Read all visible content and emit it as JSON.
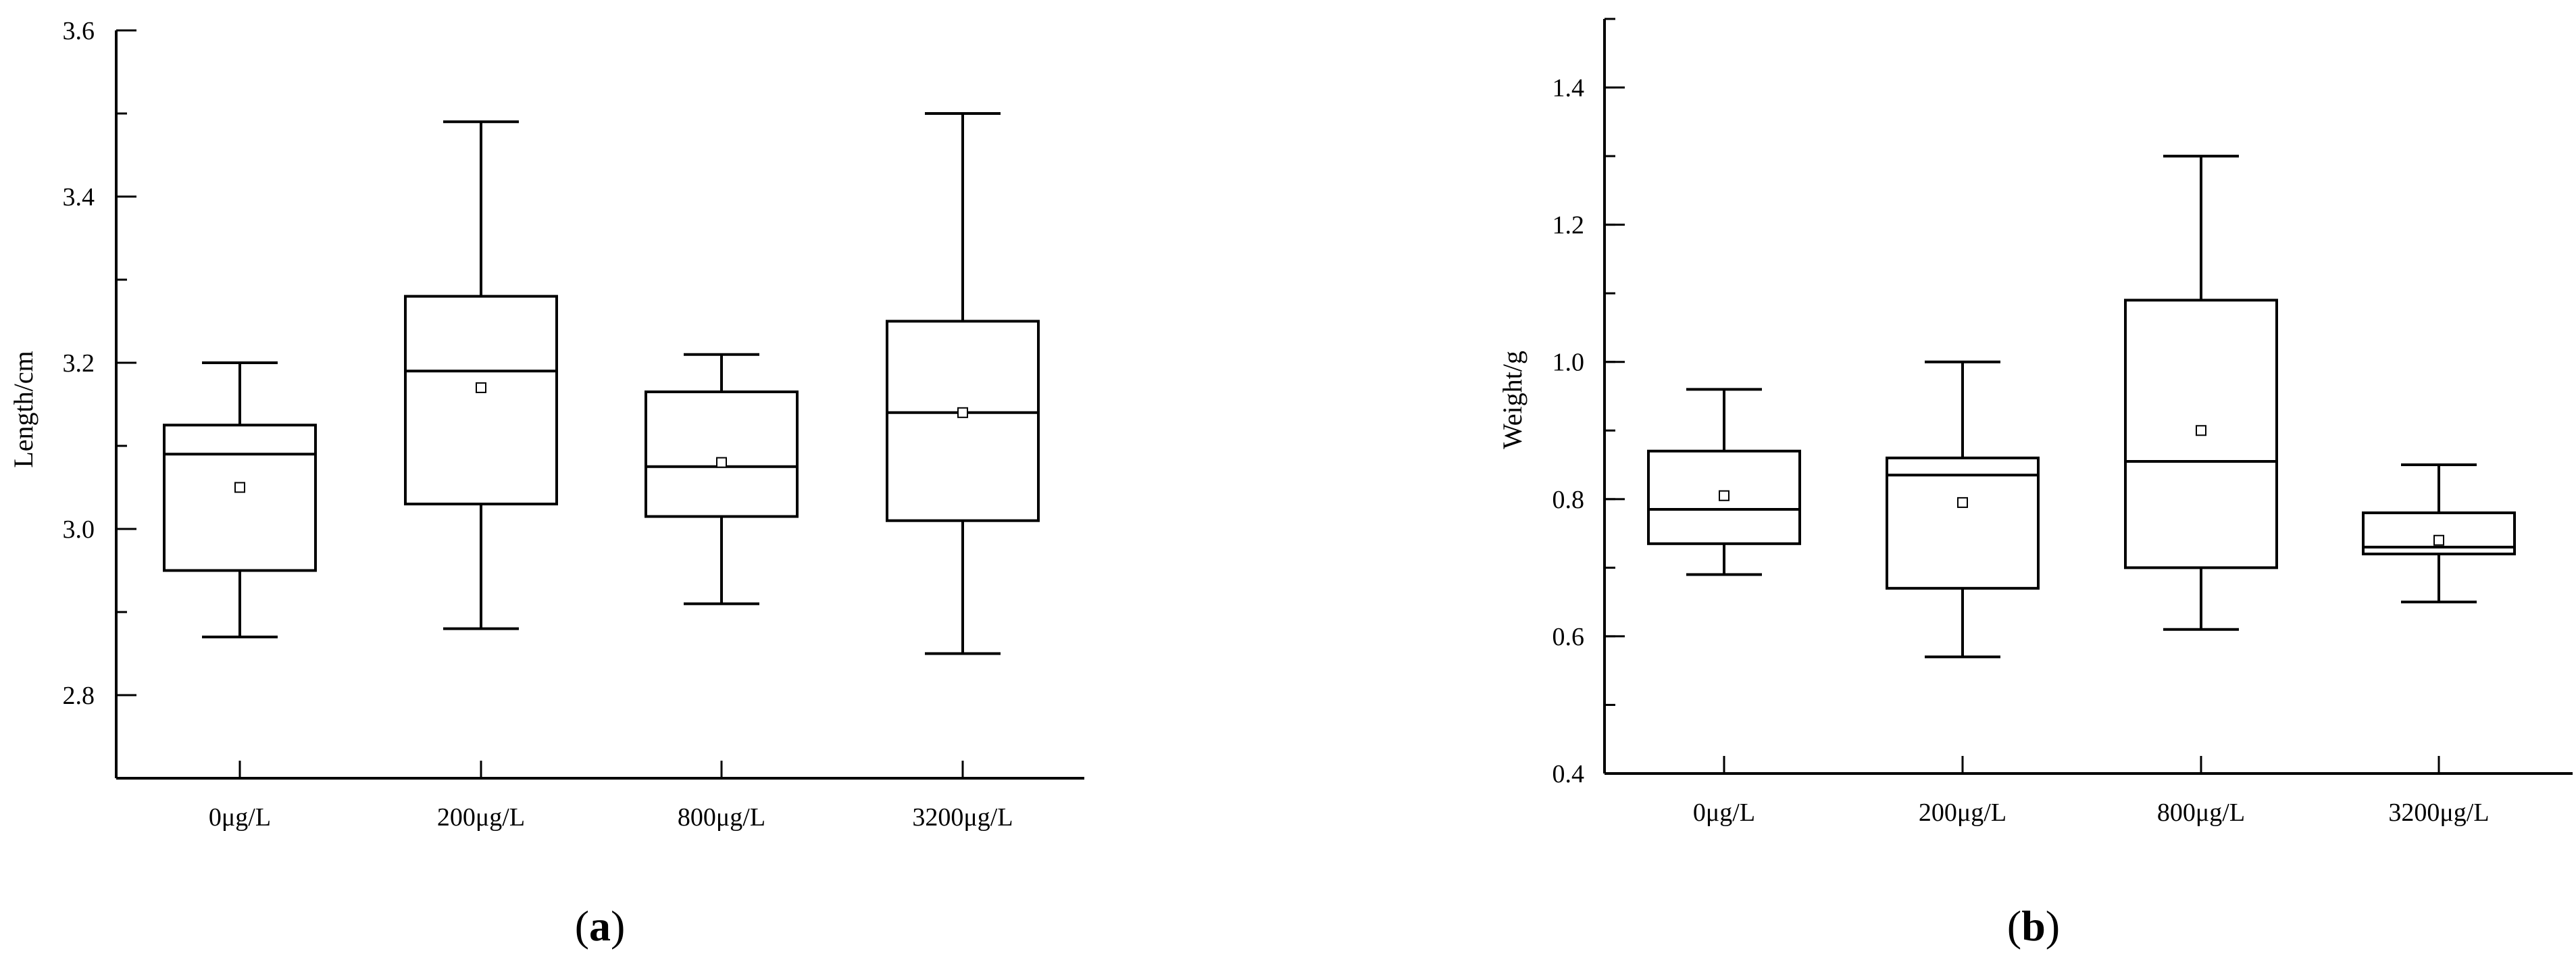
{
  "chart_data": [
    {
      "type": "box",
      "panel_label": "a",
      "ylabel": "Length/cm",
      "xlabel": "",
      "ylim": [
        2.7,
        3.6
      ],
      "yticks": [
        "2.8",
        "3.0",
        "3.2",
        "3.4",
        "3.6"
      ],
      "categories": [
        "0μg/L",
        "200μg/L",
        "800μg/L",
        "3200μg/L"
      ],
      "boxes": [
        {
          "whisker_low": 2.87,
          "q1": 2.95,
          "median": 3.09,
          "q3": 3.125,
          "whisker_high": 3.2,
          "mean": 3.05
        },
        {
          "whisker_low": 2.88,
          "q1": 3.03,
          "median": 3.19,
          "q3": 3.28,
          "whisker_high": 3.49,
          "mean": 3.17
        },
        {
          "whisker_low": 2.91,
          "q1": 3.015,
          "median": 3.075,
          "q3": 3.165,
          "whisker_high": 3.21,
          "mean": 3.08
        },
        {
          "whisker_low": 2.85,
          "q1": 3.01,
          "median": 3.14,
          "q3": 3.25,
          "whisker_high": 3.5,
          "mean": 3.14
        }
      ]
    },
    {
      "type": "box",
      "panel_label": "b",
      "ylabel": "Weight/g",
      "xlabel": "",
      "ylim": [
        0.4,
        1.5
      ],
      "yticks": [
        "0.4",
        "0.6",
        "0.8",
        "1.0",
        "1.2",
        "1.4"
      ],
      "categories": [
        "0μg/L",
        "200μg/L",
        "800μg/L",
        "3200μg/L"
      ],
      "boxes": [
        {
          "whisker_low": 0.69,
          "q1": 0.735,
          "median": 0.785,
          "q3": 0.87,
          "whisker_high": 0.96,
          "mean": 0.805
        },
        {
          "whisker_low": 0.57,
          "q1": 0.67,
          "median": 0.835,
          "q3": 0.86,
          "whisker_high": 1.0,
          "mean": 0.795
        },
        {
          "whisker_low": 0.61,
          "q1": 0.7,
          "median": 0.855,
          "q3": 1.09,
          "whisker_high": 1.3,
          "mean": 0.9
        },
        {
          "whisker_low": 0.65,
          "q1": 0.72,
          "median": 0.73,
          "q3": 0.78,
          "whisker_high": 0.85,
          "mean": 0.74
        }
      ]
    }
  ]
}
